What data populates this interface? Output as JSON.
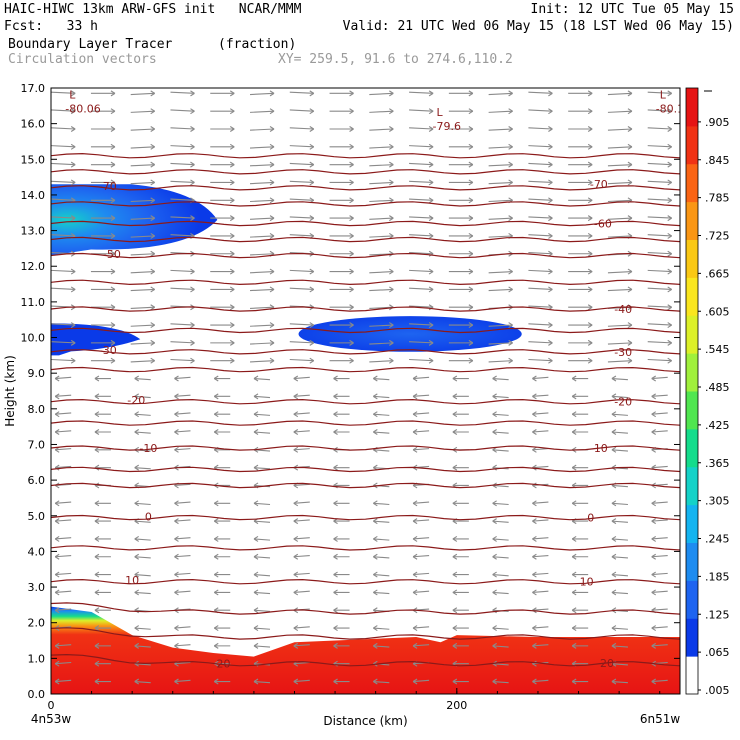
{
  "header": {
    "model_line": "HAIC-HIWC 13km ARW-GFS init   NCAR/MMM",
    "init_line": "Init: 12 UTC Tue 05 May 15",
    "fcst_line": "Fcst:   33 h",
    "valid_line": "Valid: 21 UTC Wed 06 May 15 (18 LST Wed 06 May 15)",
    "field_name": "Boundary Layer Tracer",
    "field_unit": "(fraction)",
    "vector_label": "Circulation vectors",
    "xy_label": "XY= 259.5, 91.6 to 274.6,110.2"
  },
  "chart_data": {
    "type": "heatmap",
    "description_of_axes": null,
    "xlabel": "Distance (km)",
    "ylabel": "Height (km)",
    "x_ticks": [
      {
        "value": 0,
        "label": "0"
      },
      {
        "value": 200,
        "label": "200"
      }
    ],
    "x_endpoint_labels": {
      "left": "4n53w",
      "right": "6n51w"
    },
    "xlim": [
      0,
      310
    ],
    "ylim": [
      0,
      17
    ],
    "y_ticks": [
      "0.0",
      "1.0",
      "2.0",
      "3.0",
      "4.0",
      "5.0",
      "6.0",
      "7.0",
      "8.0",
      "9.0",
      "10.0",
      "11.0",
      "12.0",
      "13.0",
      "14.0",
      "15.0",
      "16.0",
      "17.0"
    ],
    "colorbar": {
      "labels": [
        ".005",
        ".065",
        ".125",
        ".185",
        ".245",
        ".305",
        ".365",
        ".425",
        ".485",
        ".545",
        ".605",
        ".665",
        ".725",
        ".785",
        ".845",
        ".905"
      ],
      "colors": [
        "#ffffff",
        "#0a3ae8",
        "#1e64f0",
        "#1e8cf0",
        "#14b4f0",
        "#14d2c8",
        "#14dc8c",
        "#50e650",
        "#a0f03c",
        "#dcf028",
        "#fae61e",
        "#fac814",
        "#fa9614",
        "#fa6414",
        "#f03214",
        "#e61414"
      ]
    },
    "temperature_contours": [
      {
        "label": "-70",
        "y": 14.2,
        "pos": [
          {
            "x": 28,
            "y": 14.25
          },
          {
            "x": 270,
            "y": 14.3
          }
        ]
      },
      {
        "label": "-60",
        "y": 13.2,
        "pos": [
          {
            "x": 272,
            "y": 13.2
          }
        ]
      },
      {
        "label": "-50",
        "y": 12.3,
        "pos": [
          {
            "x": 30,
            "y": 12.35
          }
        ]
      },
      {
        "label": "-40",
        "y": 10.8,
        "pos": [
          {
            "x": 282,
            "y": 10.8
          }
        ]
      },
      {
        "label": "-30",
        "y": 9.6,
        "pos": [
          {
            "x": 28,
            "y": 9.65
          },
          {
            "x": 282,
            "y": 9.6
          }
        ]
      },
      {
        "label": "-20",
        "y": 8.2,
        "pos": [
          {
            "x": 42,
            "y": 8.25
          },
          {
            "x": 282,
            "y": 8.2
          }
        ]
      },
      {
        "label": "-10",
        "y": 6.9,
        "pos": [
          {
            "x": 48,
            "y": 6.9
          },
          {
            "x": 270,
            "y": 6.9
          }
        ]
      },
      {
        "label": "0",
        "y": 4.95,
        "pos": [
          {
            "x": 48,
            "y": 4.98
          },
          {
            "x": 266,
            "y": 4.95
          }
        ]
      },
      {
        "label": "10",
        "y": 3.15,
        "pos": [
          {
            "x": 40,
            "y": 3.2
          },
          {
            "x": 264,
            "y": 3.15
          }
        ]
      },
      {
        "label": "20",
        "y": 0.85,
        "pos": [
          {
            "x": 85,
            "y": 0.85
          },
          {
            "x": 274,
            "y": 0.87
          }
        ]
      }
    ],
    "extra_contour_levels": [
      15.1,
      14.65,
      13.75,
      12.75,
      11.55,
      10.2,
      9.1,
      7.6,
      6.3,
      5.85,
      4.1,
      2.3,
      1.6
    ],
    "low_markers": [
      {
        "letter": "L",
        "value": "-80.06",
        "x": 9,
        "y": 16.6
      },
      {
        "letter": "L",
        "value": "-79.6",
        "x": 190,
        "y": 16.1
      },
      {
        "letter": "L",
        "value": "-80.13",
        "x": 300,
        "y": 16.6
      }
    ],
    "tracer_regions": [
      {
        "name": "upper-left anvil",
        "x": [
          0,
          82
        ],
        "y": [
          12.3,
          14.3
        ],
        "max_fraction": 0.28
      },
      {
        "name": "left cirrus",
        "x": [
          0,
          44
        ],
        "y": [
          9.5,
          10.4
        ],
        "max_fraction": 0.07
      },
      {
        "name": "mid cirrus",
        "x": [
          122,
          232
        ],
        "y": [
          9.6,
          10.6
        ],
        "max_fraction": 0.07
      },
      {
        "name": "boundary layer",
        "x": [
          0,
          310
        ],
        "y": [
          0,
          2.45
        ],
        "max_fraction": 0.905
      }
    ],
    "boundary_layer_top": [
      {
        "x": 0,
        "y": 2.45
      },
      {
        "x": 20,
        "y": 2.3
      },
      {
        "x": 40,
        "y": 1.65
      },
      {
        "x": 60,
        "y": 1.3
      },
      {
        "x": 80,
        "y": 1.15
      },
      {
        "x": 100,
        "y": 1.05
      },
      {
        "x": 120,
        "y": 1.45
      },
      {
        "x": 180,
        "y": 1.6
      },
      {
        "x": 192,
        "y": 1.45
      },
      {
        "x": 200,
        "y": 1.65
      },
      {
        "x": 240,
        "y": 1.6
      },
      {
        "x": 310,
        "y": 1.6
      }
    ],
    "wind_vectors": {
      "upper_direction": "east",
      "lower_direction": "west",
      "reversal_height_km": 9.0
    }
  }
}
